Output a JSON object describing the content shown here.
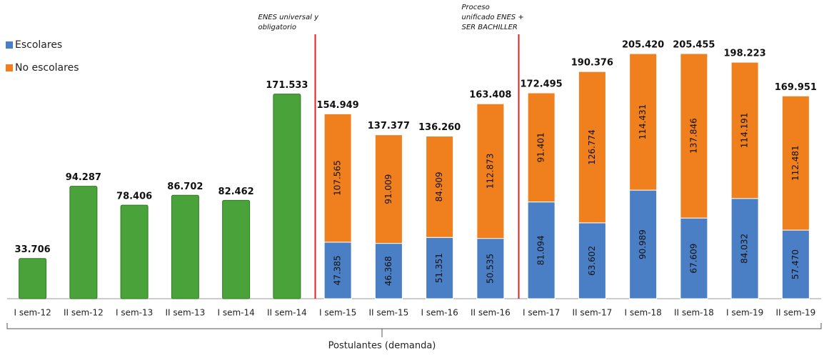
{
  "chart_data": {
    "type": "stacked-bar",
    "categories": [
      "I sem-12",
      "II sem-12",
      "I sem-13",
      "II sem-13",
      "I sem-14",
      "II sem-14",
      "I sem-15",
      "II sem-15",
      "I sem-16",
      "II sem-16",
      "I sem-17",
      "II sem-17",
      "I sem-18",
      "II sem-18",
      "I sem-19",
      "II sem-19"
    ],
    "series": [
      {
        "name": "Escolares",
        "color": "#4a7fc6",
        "values": [
          null,
          null,
          null,
          null,
          null,
          null,
          47385,
          46368,
          51351,
          50535,
          81094,
          63602,
          90989,
          67609,
          84032,
          57470
        ],
        "value_labels": [
          null,
          null,
          null,
          null,
          null,
          null,
          "47.385",
          "46.368",
          "51.351",
          "50.535",
          "81.094",
          "63.602",
          "90.989",
          "67.609",
          "84.032",
          "57.470"
        ]
      },
      {
        "name": "No escolares",
        "color": "#f07f1d",
        "values": [
          null,
          null,
          null,
          null,
          null,
          null,
          107565,
          91009,
          84909,
          112873,
          91401,
          126774,
          114431,
          137846,
          114191,
          112481
        ],
        "value_labels": [
          null,
          null,
          null,
          null,
          null,
          null,
          "107.565",
          "91.009",
          "84.909",
          "112.873",
          "91.401",
          "126.774",
          "114.431",
          "137.846",
          "114.191",
          "112.481"
        ]
      }
    ],
    "totals": {
      "color": "#4aa33a",
      "values": [
        33706,
        94287,
        78406,
        86702,
        82462,
        171533,
        154949,
        137377,
        136260,
        163408,
        172495,
        190376,
        205420,
        205455,
        198223,
        169951
      ],
      "value_labels": [
        "33.706",
        "94.287",
        "78.406",
        "86.702",
        "82.462",
        "171.533",
        "154.949",
        "137.377",
        "136.260",
        "163.408",
        "172.495",
        "190.376",
        "205.420",
        "205.455",
        "198.223",
        "169.951"
      ]
    },
    "annotations": [
      {
        "lines": [
          "ENES universal y",
          "obligatorio"
        ],
        "color": "#e02020"
      },
      {
        "lines": [
          "Proceso",
          "unificado ENES +",
          "SER BACHILLER"
        ],
        "color": "#e02020"
      }
    ],
    "xlabel": "Postulantes (demanda)"
  }
}
